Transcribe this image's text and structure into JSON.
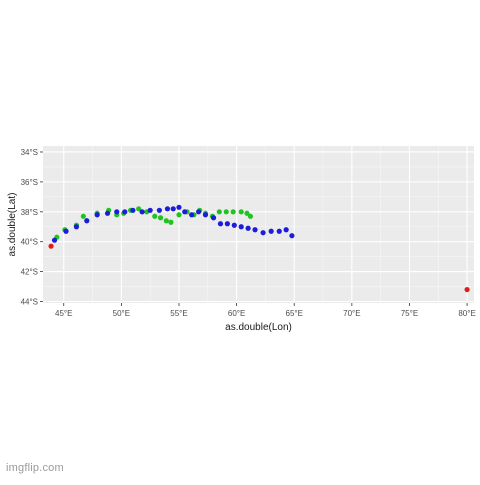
{
  "chart_data": {
    "type": "scatter",
    "xlabel": "as.double(Lon)",
    "ylabel": "as.double(Lat)",
    "xlim": [
      43.2,
      80.6
    ],
    "ylim": [
      -44.1,
      -33.6
    ],
    "x_ticks": [
      {
        "value": 45,
        "label": "45°E"
      },
      {
        "value": 50,
        "label": "50°E"
      },
      {
        "value": 55,
        "label": "55°E"
      },
      {
        "value": 60,
        "label": "60°E"
      },
      {
        "value": 65,
        "label": "65°E"
      },
      {
        "value": 70,
        "label": "70°E"
      },
      {
        "value": 75,
        "label": "75°E"
      },
      {
        "value": 80,
        "label": "80°E"
      }
    ],
    "y_ticks": [
      {
        "value": -34,
        "label": "34°S"
      },
      {
        "value": -36,
        "label": "36°S"
      },
      {
        "value": -38,
        "label": "38°S"
      },
      {
        "value": -40,
        "label": "40°S"
      },
      {
        "value": -42,
        "label": "42°S"
      },
      {
        "value": -44,
        "label": "44°S"
      }
    ],
    "grid": true,
    "legend": "none",
    "series": [
      {
        "color": "#e31a1c",
        "points": [
          [
            43.9,
            -40.3
          ],
          [
            80.0,
            -43.2
          ]
        ]
      },
      {
        "color": "#1fc41f",
        "points": [
          [
            44.4,
            -39.7
          ],
          [
            45.1,
            -39.2
          ],
          [
            46.1,
            -38.9
          ],
          [
            46.7,
            -38.3
          ],
          [
            47.9,
            -38.1
          ],
          [
            48.9,
            -37.9
          ],
          [
            49.6,
            -38.2
          ],
          [
            50.2,
            -38.1
          ],
          [
            50.8,
            -37.9
          ],
          [
            51.5,
            -37.8
          ],
          [
            52.2,
            -38.0
          ],
          [
            52.9,
            -38.3
          ],
          [
            53.4,
            -38.4
          ],
          [
            53.9,
            -38.6
          ],
          [
            54.3,
            -38.7
          ],
          [
            55.0,
            -38.2
          ],
          [
            55.7,
            -38.0
          ],
          [
            56.3,
            -38.2
          ],
          [
            56.8,
            -37.9
          ],
          [
            57.3,
            -38.1
          ],
          [
            57.9,
            -38.3
          ],
          [
            58.5,
            -38.0
          ],
          [
            59.1,
            -38.0
          ],
          [
            59.7,
            -38.0
          ],
          [
            60.4,
            -38.0
          ],
          [
            60.9,
            -38.1
          ],
          [
            61.2,
            -38.3
          ]
        ]
      },
      {
        "color": "#1c1cdc",
        "points": [
          [
            44.2,
            -39.9
          ],
          [
            45.2,
            -39.3
          ],
          [
            46.1,
            -39.0
          ],
          [
            47.0,
            -38.6
          ],
          [
            47.9,
            -38.2
          ],
          [
            48.8,
            -38.1
          ],
          [
            49.6,
            -38.0
          ],
          [
            50.3,
            -38.0
          ],
          [
            51.0,
            -37.9
          ],
          [
            51.8,
            -38.0
          ],
          [
            52.5,
            -37.9
          ],
          [
            53.3,
            -37.9
          ],
          [
            54.0,
            -37.8
          ],
          [
            54.5,
            -37.8
          ],
          [
            55.0,
            -37.7
          ],
          [
            55.5,
            -38.0
          ],
          [
            56.1,
            -38.2
          ],
          [
            56.7,
            -38.0
          ],
          [
            57.3,
            -38.2
          ],
          [
            58.0,
            -38.4
          ],
          [
            58.6,
            -38.8
          ],
          [
            59.2,
            -38.8
          ],
          [
            59.8,
            -38.9
          ],
          [
            60.4,
            -39.0
          ],
          [
            61.0,
            -39.1
          ],
          [
            61.6,
            -39.2
          ],
          [
            62.3,
            -39.4
          ],
          [
            63.0,
            -39.3
          ],
          [
            63.7,
            -39.3
          ],
          [
            64.3,
            -39.2
          ],
          [
            64.8,
            -39.6
          ]
        ]
      }
    ]
  },
  "watermark": "imgflip.com"
}
